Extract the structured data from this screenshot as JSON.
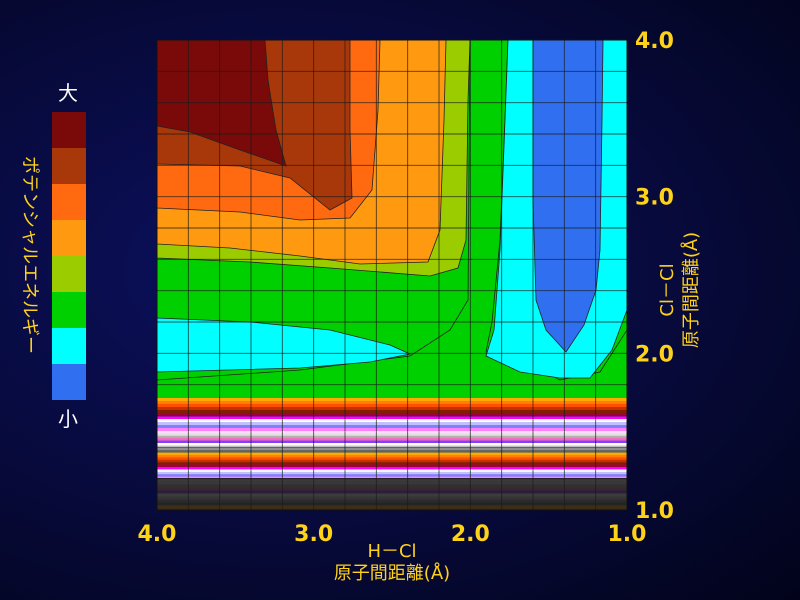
{
  "chart_data": {
    "type": "heatmap",
    "title": "",
    "xlabel_line1": "H－Cl",
    "xlabel_line2": "原子間距離(Å)",
    "ylabel_line1": "Cl－Cl",
    "ylabel_line2": "原子間距離(Å)",
    "xlim": [
      4.0,
      1.0
    ],
    "ylim": [
      1.0,
      4.0
    ],
    "x_ticks": [
      "4.0",
      "3.0",
      "2.0",
      "1.0"
    ],
    "y_ticks": [
      "1.0",
      "2.0",
      "3.0",
      "4.0"
    ],
    "x_tick_values": [
      4.0,
      3.0,
      2.0,
      1.0
    ],
    "y_tick_values": [
      1.0,
      2.0,
      3.0,
      4.0
    ],
    "grid": true,
    "legend": {
      "title": "ポテンシャルエネルギー",
      "high_label": "大",
      "low_label": "小",
      "placement": "left",
      "levels_high_to_low": [
        "#7a0a0a",
        "#a8380a",
        "#ff6a10",
        "#ff9a10",
        "#9acc00",
        "#00d000",
        "#00ffff",
        "#3070f0"
      ]
    },
    "level_colors_low_to_high": [
      "#3070f0",
      "#00ffff",
      "#00d000",
      "#9acc00",
      "#ff9a10",
      "#ff6a10",
      "#a8380a",
      "#7a0a0a"
    ]
  }
}
